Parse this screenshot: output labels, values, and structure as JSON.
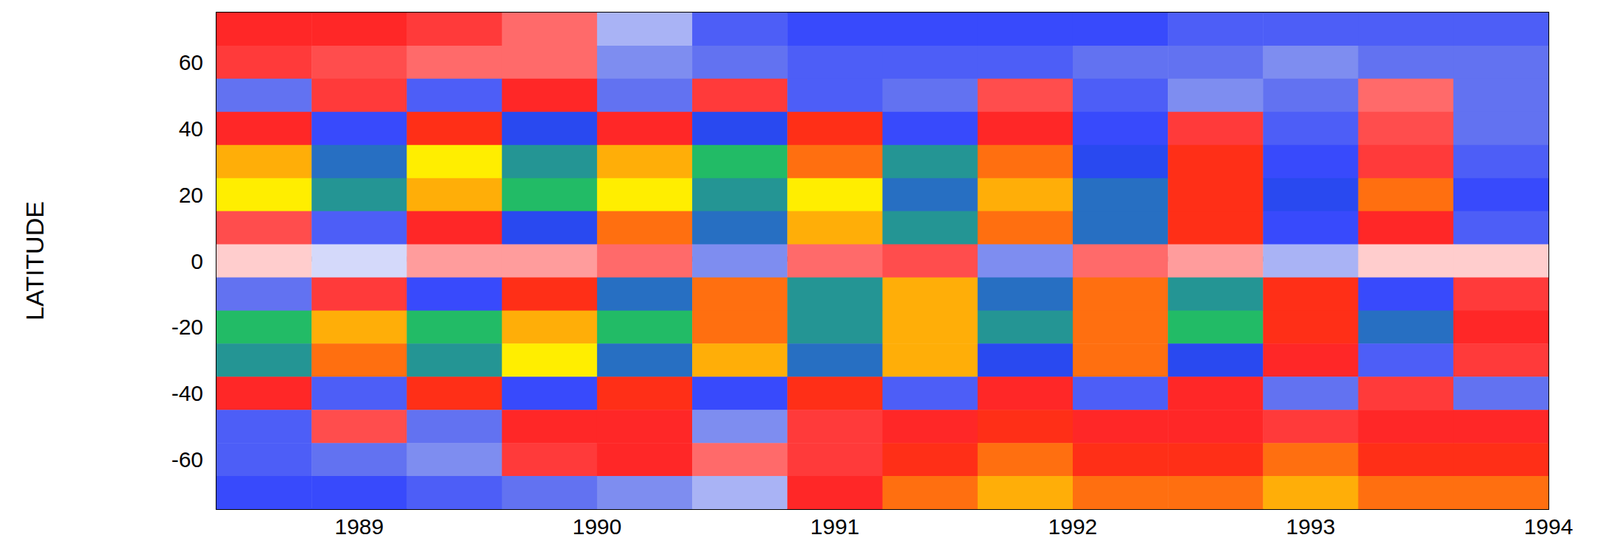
{
  "chart_data": {
    "type": "heatmap",
    "ylabel": "LATITUDE",
    "x": [
      1988.6,
      1989.0,
      1989.4,
      1989.8,
      1990.2,
      1990.6,
      1991.0,
      1991.4,
      1991.8,
      1992.2,
      1992.6,
      1993.0,
      1993.4,
      1993.8
    ],
    "y": [
      70,
      60,
      50,
      40,
      30,
      20,
      10,
      0,
      -10,
      -20,
      -30,
      -40,
      -50,
      -60,
      -70
    ],
    "z": [
      [
        0.6,
        0.6,
        0.5,
        0.3,
        -0.2,
        -0.5,
        -0.6,
        -0.6,
        -0.6,
        -0.6,
        -0.5,
        -0.5,
        -0.5,
        -0.5
      ],
      [
        0.5,
        0.4,
        0.3,
        0.3,
        -0.3,
        -0.4,
        -0.5,
        -0.5,
        -0.5,
        -0.4,
        -0.4,
        -0.3,
        -0.4,
        -0.4
      ],
      [
        -0.4,
        0.5,
        -0.5,
        0.6,
        -0.4,
        0.5,
        -0.5,
        -0.4,
        0.4,
        -0.5,
        -0.3,
        -0.4,
        0.3,
        -0.4
      ],
      [
        0.6,
        -0.6,
        0.7,
        -0.7,
        0.6,
        -0.7,
        0.7,
        -0.6,
        0.6,
        -0.6,
        0.5,
        -0.5,
        0.4,
        -0.4
      ],
      [
        0.9,
        -0.8,
        1.0,
        -0.9,
        0.9,
        -1.0,
        0.8,
        -0.9,
        0.8,
        -0.7,
        0.7,
        -0.6,
        0.5,
        -0.5
      ],
      [
        1.0,
        -0.9,
        0.9,
        -1.0,
        1.0,
        -0.9,
        1.0,
        -0.8,
        0.9,
        -0.8,
        0.7,
        -0.7,
        0.8,
        -0.6
      ],
      [
        0.4,
        -0.5,
        0.6,
        -0.7,
        0.8,
        -0.8,
        0.9,
        -0.9,
        0.8,
        -0.8,
        0.7,
        -0.6,
        0.6,
        -0.5
      ],
      [
        0.1,
        -0.1,
        0.2,
        0.2,
        0.3,
        -0.3,
        0.3,
        0.4,
        -0.3,
        0.3,
        0.2,
        -0.2,
        0.1,
        0.1
      ],
      [
        -0.4,
        0.5,
        -0.6,
        0.7,
        -0.8,
        0.8,
        -0.9,
        0.9,
        -0.8,
        0.8,
        -0.9,
        0.7,
        -0.6,
        0.5
      ],
      [
        -1.0,
        0.9,
        -1.0,
        0.9,
        -1.0,
        0.8,
        -0.9,
        0.9,
        -0.9,
        0.8,
        -1.0,
        0.7,
        -0.8,
        0.6
      ],
      [
        -0.9,
        0.8,
        -0.9,
        1.0,
        -0.8,
        0.9,
        -0.8,
        0.9,
        -0.7,
        0.8,
        -0.7,
        0.6,
        -0.5,
        0.5
      ],
      [
        0.6,
        -0.5,
        0.7,
        -0.6,
        0.7,
        -0.6,
        0.7,
        -0.5,
        0.6,
        -0.5,
        0.6,
        -0.4,
        0.5,
        -0.4
      ],
      [
        -0.5,
        0.4,
        -0.4,
        0.6,
        0.6,
        -0.3,
        0.5,
        0.6,
        0.7,
        0.6,
        0.6,
        0.5,
        0.6,
        0.6
      ],
      [
        -0.5,
        -0.4,
        -0.3,
        0.5,
        0.6,
        0.3,
        0.5,
        0.7,
        0.8,
        0.7,
        0.7,
        0.8,
        0.7,
        0.7
      ],
      [
        -0.6,
        -0.6,
        -0.5,
        -0.4,
        -0.3,
        -0.2,
        0.6,
        0.8,
        0.9,
        0.8,
        0.8,
        0.9,
        0.8,
        0.8
      ]
    ],
    "zlim": [
      -1,
      1
    ],
    "xlim": [
      1988.4,
      1994.0
    ],
    "xticks": [
      1989,
      1990,
      1991,
      1992,
      1993,
      1994
    ],
    "ylim": [
      -75,
      75
    ],
    "yticks": [
      -60,
      -40,
      -20,
      0,
      20,
      40,
      60
    ],
    "grid": false
  }
}
